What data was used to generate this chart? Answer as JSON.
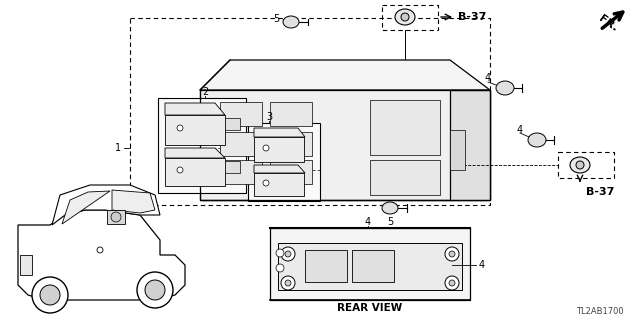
{
  "bg_color": "#ffffff",
  "fig_width": 6.4,
  "fig_height": 3.2,
  "dpi": 100,
  "labels": {
    "fr_label": "FR.",
    "rear_view": "REAR VIEW",
    "part_code": "TL2AB1700",
    "b37_top": "B-37",
    "b37_right": "B-37"
  },
  "line_color": "#000000",
  "text_color": "#000000"
}
